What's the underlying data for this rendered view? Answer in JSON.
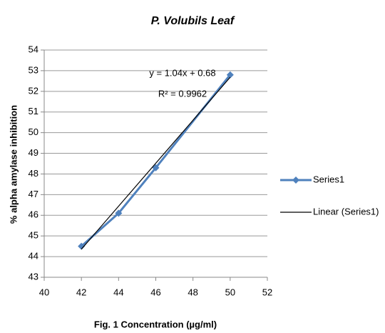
{
  "chart_data": {
    "type": "scatter",
    "title": "P. Volubils Leaf",
    "x_label": "Fig. 1 Concentration (µg/ml)",
    "y_label": "% alpha amylase inhibition",
    "series": [
      {
        "name": "Series1",
        "color": "#4f81bd",
        "x": [
          42,
          44,
          46,
          50
        ],
        "values": [
          44.5,
          46.1,
          48.3,
          52.8
        ]
      }
    ],
    "trendline": {
      "name": "Linear (Series1)",
      "color": "#000000",
      "slope": 1.04,
      "intercept": 0.68,
      "equation": "y = 1.04x + 0.68",
      "r_squared": "R² = 0.9962"
    },
    "xlim": [
      40,
      52
    ],
    "xticks": [
      40,
      42,
      44,
      46,
      48,
      50,
      52
    ],
    "ylim": [
      43,
      54
    ],
    "yticks": [
      43,
      44,
      45,
      46,
      47,
      48,
      49,
      50,
      51,
      52,
      53,
      54
    ],
    "grid": true,
    "legend": "right"
  }
}
